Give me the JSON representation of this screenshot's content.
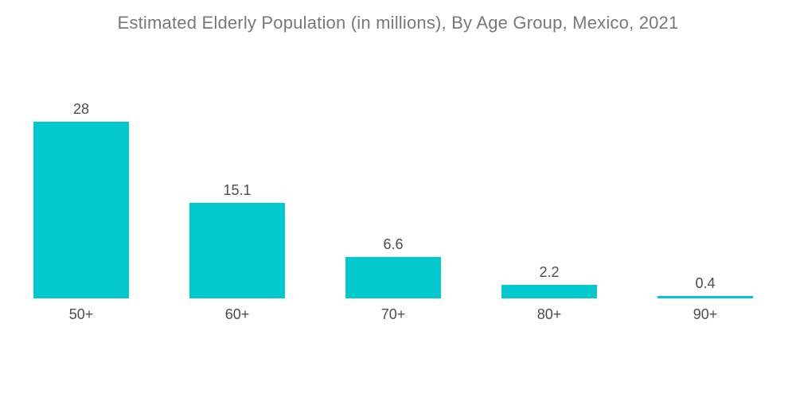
{
  "chart_data": {
    "type": "bar",
    "title": "Estimated Elderly Population (in millions), By Age Group, Mexico, 2021",
    "categories": [
      "50+",
      "60+",
      "70+",
      "80+",
      "90+"
    ],
    "values": [
      28,
      15.1,
      6.6,
      2.2,
      0.4
    ],
    "value_labels": [
      "28",
      "15.1",
      "6.6",
      "2.2",
      "0.4"
    ],
    "xlabel": "",
    "ylabel": "",
    "ylim": [
      0,
      28
    ],
    "grid": false,
    "legend_position": "none",
    "bar_color": "#03C9CF",
    "title_color": "#75797C",
    "label_color": "#4A4D50",
    "background_color": "#FFFFFF"
  }
}
